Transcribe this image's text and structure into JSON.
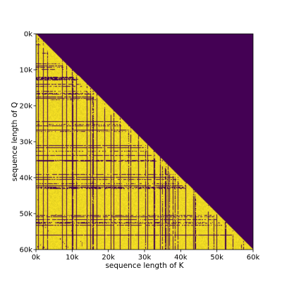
{
  "chart_data": {
    "type": "heatmap",
    "title": "",
    "xlabel": "sequence length of K",
    "ylabel": "sequence length of Q",
    "xlim": [
      0,
      60000
    ],
    "ylim": [
      60000,
      0
    ],
    "x_ticks": [
      0,
      10000,
      20000,
      30000,
      40000,
      50000,
      60000
    ],
    "y_ticks": [
      0,
      10000,
      20000,
      30000,
      40000,
      50000,
      60000
    ],
    "x_tick_labels": [
      "0k",
      "10k",
      "20k",
      "30k",
      "40k",
      "50k",
      "60k"
    ],
    "y_tick_labels": [
      "0k",
      "10k",
      "20k",
      "30k",
      "40k",
      "50k",
      "60k"
    ],
    "mask": "causal lower-triangular (K <= Q)",
    "value_range": [
      0,
      1
    ],
    "colormap": [
      "#440154",
      "#fde725"
    ],
    "masked_value": 0,
    "active_fraction_estimate": 0.7,
    "grid": false
  }
}
